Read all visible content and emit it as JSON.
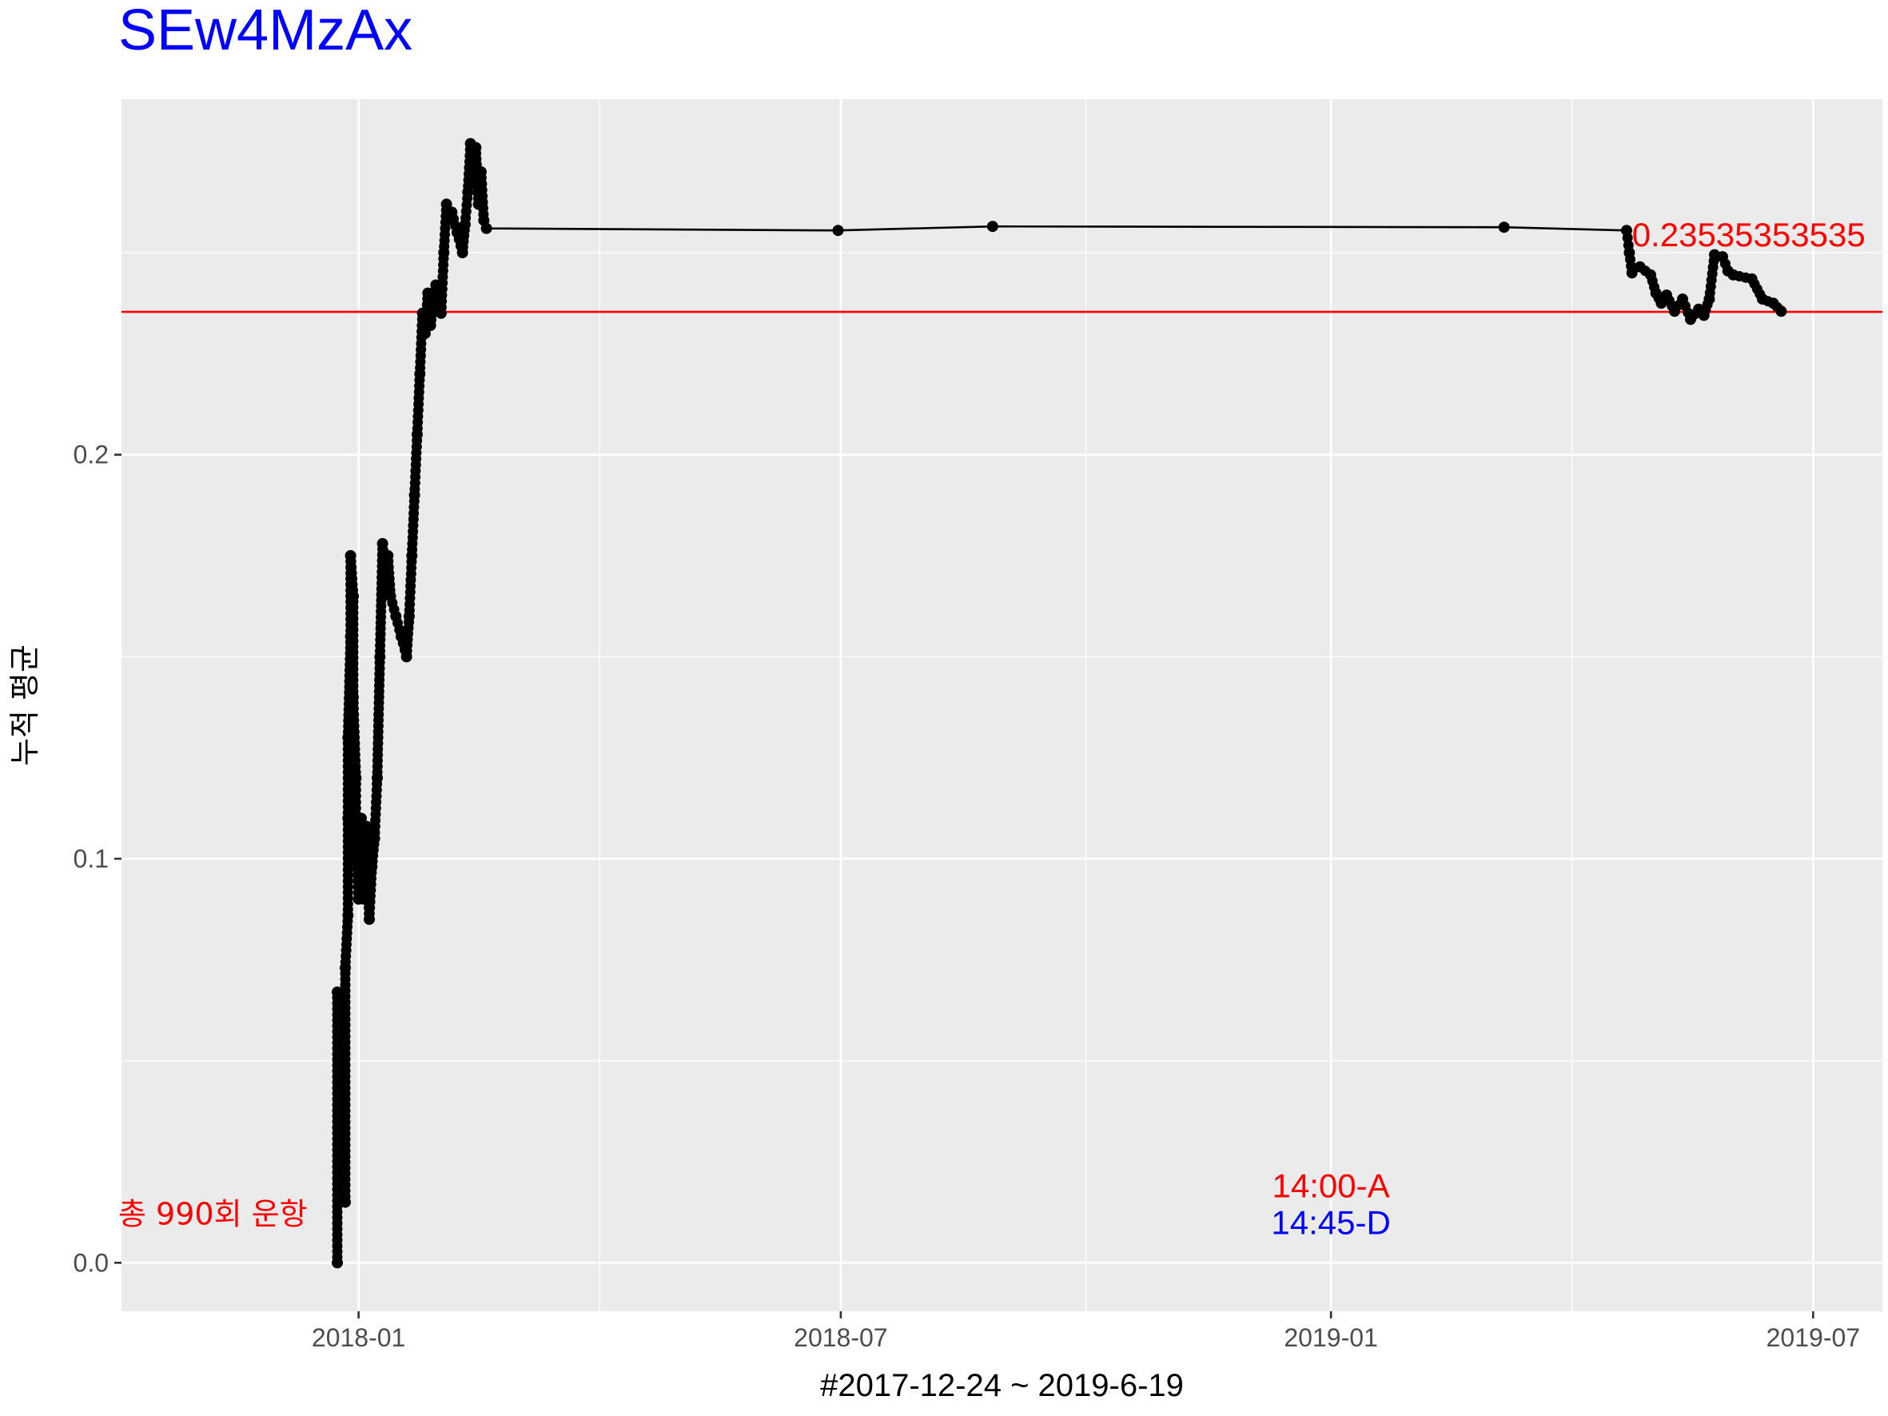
{
  "chart_data": {
    "type": "line",
    "title": "SEw4MzAx",
    "title_color": "#0000ff",
    "xlabel": "#2017-12-24 ~ 2019-6-19",
    "ylabel": "누적 평균",
    "x_ticks": [
      {
        "date": "2018-01-01",
        "label": "2018-01"
      },
      {
        "date": "2018-07-01",
        "label": "2018-07"
      },
      {
        "date": "2019-01-01",
        "label": "2019-01"
      },
      {
        "date": "2019-07-01",
        "label": "2019-07"
      }
    ],
    "y_ticks": [
      {
        "value": 0.0,
        "label": "0.0"
      },
      {
        "value": 0.1,
        "label": "0.1"
      },
      {
        "value": 0.2,
        "label": "0.2"
      }
    ],
    "xlim": [
      "2017-10-04",
      "2019-07-27"
    ],
    "ylim": [
      -0.012,
      0.288
    ],
    "grid": true,
    "background": "#ebebeb",
    "reference_line": {
      "value": 0.23535353535,
      "color": "#ff0000",
      "label": "0.23535353535"
    },
    "annotations": [
      {
        "text": "총 990회 운항",
        "color": "#ff0000"
      },
      {
        "text": "14:00-A",
        "color": "#ff0000"
      },
      {
        "text": "14:45-D",
        "color": "#0000ff"
      }
    ],
    "series": [
      {
        "line_color": "#000000",
        "points": [
          [
            "2017-12-24",
            0.0
          ],
          [
            "2017-12-24",
            0.067
          ],
          [
            "2017-12-25",
            0.035
          ],
          [
            "2017-12-25",
            0.06
          ],
          [
            "2017-12-26",
            0.02
          ],
          [
            "2017-12-26",
            0.045
          ],
          [
            "2017-12-27",
            0.015
          ],
          [
            "2017-12-27",
            0.073
          ],
          [
            "2017-12-28",
            0.086
          ],
          [
            "2017-12-28",
            0.11
          ],
          [
            "2017-12-28",
            0.13
          ],
          [
            "2017-12-29",
            0.155
          ],
          [
            "2017-12-29",
            0.175
          ],
          [
            "2017-12-30",
            0.165
          ],
          [
            "2017-12-30",
            0.14
          ],
          [
            "2017-12-31",
            0.12
          ],
          [
            "2017-12-31",
            0.105
          ],
          [
            "2018-01-01",
            0.09
          ],
          [
            "2018-01-02",
            0.11
          ],
          [
            "2018-01-03",
            0.09
          ],
          [
            "2018-01-04",
            0.108
          ],
          [
            "2018-01-05",
            0.085
          ],
          [
            "2018-01-06",
            0.098
          ],
          [
            "2018-01-07",
            0.105
          ],
          [
            "2018-01-08",
            0.12
          ],
          [
            "2018-01-09",
            0.15
          ],
          [
            "2018-01-10",
            0.178
          ],
          [
            "2018-01-11",
            0.17
          ],
          [
            "2018-01-12",
            0.175
          ],
          [
            "2018-01-13",
            0.165
          ],
          [
            "2018-01-15",
            0.16
          ],
          [
            "2018-01-17",
            0.155
          ],
          [
            "2018-01-19",
            0.15
          ],
          [
            "2018-01-20",
            0.16
          ],
          [
            "2018-01-21",
            0.175
          ],
          [
            "2018-01-22",
            0.19
          ],
          [
            "2018-01-23",
            0.205
          ],
          [
            "2018-01-24",
            0.22
          ],
          [
            "2018-01-25",
            0.235
          ],
          [
            "2018-01-26",
            0.23
          ],
          [
            "2018-01-27",
            0.24
          ],
          [
            "2018-01-28",
            0.232
          ],
          [
            "2018-01-30",
            0.242
          ],
          [
            "2018-02-01",
            0.235
          ],
          [
            "2018-02-02",
            0.25
          ],
          [
            "2018-02-03",
            0.262
          ],
          [
            "2018-02-05",
            0.26
          ],
          [
            "2018-02-07",
            0.255
          ],
          [
            "2018-02-09",
            0.25
          ],
          [
            "2018-02-10",
            0.257
          ],
          [
            "2018-02-11",
            0.265
          ],
          [
            "2018-02-12",
            0.277
          ],
          [
            "2018-02-13",
            0.27
          ],
          [
            "2018-02-14",
            0.276
          ],
          [
            "2018-02-15",
            0.262
          ],
          [
            "2018-02-16",
            0.27
          ],
          [
            "2018-02-17",
            0.258
          ],
          [
            "2018-02-18",
            0.256
          ],
          [
            "2018-06-30",
            0.2555
          ],
          [
            "2018-08-27",
            0.2565
          ],
          [
            "2019-03-07",
            0.2563
          ],
          [
            "2019-04-22",
            0.2555
          ],
          [
            "2019-04-23",
            0.25
          ],
          [
            "2019-04-24",
            0.245
          ],
          [
            "2019-04-27",
            0.2465
          ],
          [
            "2019-05-01",
            0.2445
          ],
          [
            "2019-05-03",
            0.24
          ],
          [
            "2019-05-05",
            0.2375
          ],
          [
            "2019-05-07",
            0.2395
          ],
          [
            "2019-05-10",
            0.2355
          ],
          [
            "2019-05-13",
            0.2385
          ],
          [
            "2019-05-16",
            0.2335
          ],
          [
            "2019-05-19",
            0.236
          ],
          [
            "2019-05-21",
            0.2345
          ],
          [
            "2019-05-23",
            0.2385
          ],
          [
            "2019-05-25",
            0.2495
          ],
          [
            "2019-05-28",
            0.249
          ],
          [
            "2019-05-30",
            0.2455
          ],
          [
            "2019-06-01",
            0.2445
          ],
          [
            "2019-06-08",
            0.2435
          ],
          [
            "2019-06-12",
            0.2385
          ],
          [
            "2019-06-16",
            0.2375
          ],
          [
            "2019-06-19",
            0.2355
          ]
        ]
      }
    ]
  }
}
